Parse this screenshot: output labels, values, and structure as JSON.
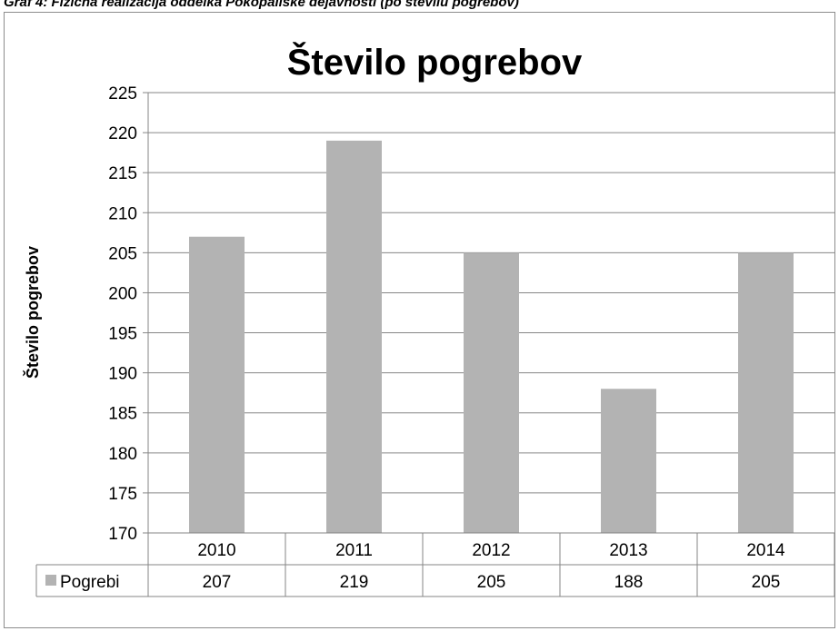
{
  "caption": "Graf 4: Fizična realizacija oddelka Pokopališke dejavnosti (po številu pogrebov)",
  "chart_data": {
    "type": "bar",
    "title": "Število pogrebov",
    "ylabel": "Število pogrebov",
    "xlabel": "",
    "categories": [
      "2010",
      "2011",
      "2012",
      "2013",
      "2014"
    ],
    "series": [
      {
        "name": "Pogrebi",
        "values": [
          207,
          219,
          205,
          188,
          205
        ],
        "color": "#b3b3b3"
      }
    ],
    "ylim": [
      170,
      225
    ],
    "yticks": [
      170,
      175,
      180,
      185,
      190,
      195,
      200,
      205,
      210,
      215,
      220,
      225
    ],
    "grid": true,
    "legend": "data-table",
    "data_table": true
  }
}
